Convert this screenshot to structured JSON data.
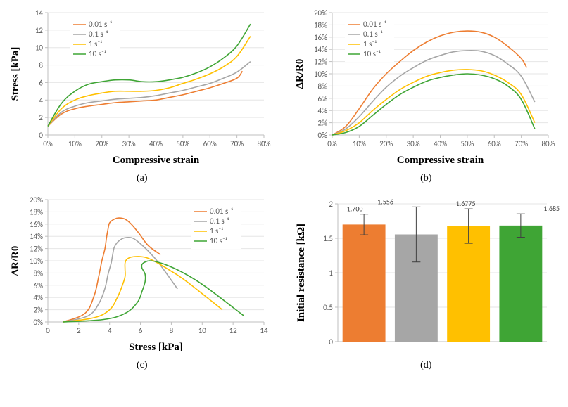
{
  "colors": {
    "s001": "#ed7d31",
    "s01": "#a6a6a6",
    "s1": "#ffc000",
    "s10": "#3fa535",
    "axis": "#bfbfbf",
    "grid": "#e6e6e6",
    "text": "#595959",
    "label": "#000000",
    "errbar": "#404040"
  },
  "legend_labels": [
    "0.01 s⁻¹",
    "0.1 s⁻¹",
    "1 s⁻¹",
    "10 s⁻¹"
  ],
  "panel_a": {
    "sublabel": "(a)",
    "xlabel": "Compressive strain",
    "ylabel": "Stress [kPa]",
    "xmin": 0,
    "xmax": 80,
    "xtick": 10,
    "xtick_suffix": "%",
    "ymin": 0,
    "ymax": 14,
    "ytick": 2,
    "series": {
      "s001": [
        [
          0,
          1.0
        ],
        [
          5,
          2.4
        ],
        [
          10,
          3.0
        ],
        [
          15,
          3.3
        ],
        [
          20,
          3.5
        ],
        [
          25,
          3.7
        ],
        [
          30,
          3.8
        ],
        [
          35,
          3.9
        ],
        [
          40,
          4.0
        ],
        [
          45,
          4.3
        ],
        [
          50,
          4.6
        ],
        [
          55,
          5.0
        ],
        [
          60,
          5.4
        ],
        [
          65,
          5.9
        ],
        [
          70,
          6.5
        ],
        [
          72,
          7.3
        ]
      ],
      "s01": [
        [
          0,
          1.0
        ],
        [
          5,
          2.6
        ],
        [
          10,
          3.3
        ],
        [
          15,
          3.7
        ],
        [
          20,
          3.9
        ],
        [
          25,
          4.1
        ],
        [
          30,
          4.2
        ],
        [
          35,
          4.3
        ],
        [
          40,
          4.5
        ],
        [
          45,
          4.8
        ],
        [
          50,
          5.1
        ],
        [
          55,
          5.5
        ],
        [
          60,
          5.9
        ],
        [
          65,
          6.5
        ],
        [
          70,
          7.2
        ],
        [
          75,
          8.4
        ]
      ],
      "s1": [
        [
          0,
          1.0
        ],
        [
          5,
          3.0
        ],
        [
          10,
          4.0
        ],
        [
          15,
          4.5
        ],
        [
          20,
          4.8
        ],
        [
          25,
          5.0
        ],
        [
          30,
          5.0
        ],
        [
          35,
          5.0
        ],
        [
          40,
          5.1
        ],
        [
          45,
          5.4
        ],
        [
          50,
          5.9
        ],
        [
          55,
          6.4
        ],
        [
          60,
          7.0
        ],
        [
          65,
          7.8
        ],
        [
          70,
          9.0
        ],
        [
          75,
          11.3
        ]
      ],
      "s10": [
        [
          0,
          1.0
        ],
        [
          5,
          3.6
        ],
        [
          10,
          5.0
        ],
        [
          15,
          5.8
        ],
        [
          20,
          6.1
        ],
        [
          25,
          6.3
        ],
        [
          30,
          6.3
        ],
        [
          35,
          6.1
        ],
        [
          40,
          6.1
        ],
        [
          45,
          6.3
        ],
        [
          50,
          6.6
        ],
        [
          55,
          7.1
        ],
        [
          60,
          7.8
        ],
        [
          65,
          8.8
        ],
        [
          70,
          10.2
        ],
        [
          75,
          12.7
        ]
      ]
    }
  },
  "panel_b": {
    "sublabel": "(b)",
    "xlabel": "Compressive strain",
    "ylabel": "ΔR/R0",
    "xmin": 0,
    "xmax": 80,
    "xtick": 10,
    "xtick_suffix": "%",
    "ymin": 0,
    "ymax": 20,
    "ytick": 2,
    "ytick_suffix": "%",
    "series": {
      "s001": [
        [
          0,
          0
        ],
        [
          5,
          1.4
        ],
        [
          10,
          4.3
        ],
        [
          15,
          7.5
        ],
        [
          20,
          10.0
        ],
        [
          25,
          12.0
        ],
        [
          30,
          13.8
        ],
        [
          35,
          15.2
        ],
        [
          40,
          16.2
        ],
        [
          45,
          16.8
        ],
        [
          50,
          17.0
        ],
        [
          55,
          16.8
        ],
        [
          60,
          16.0
        ],
        [
          65,
          14.5
        ],
        [
          70,
          12.5
        ],
        [
          72,
          11.0
        ]
      ],
      "s01": [
        [
          0,
          0
        ],
        [
          5,
          1.0
        ],
        [
          10,
          3.0
        ],
        [
          15,
          5.5
        ],
        [
          20,
          7.8
        ],
        [
          25,
          9.6
        ],
        [
          30,
          11.0
        ],
        [
          35,
          12.2
        ],
        [
          40,
          13.0
        ],
        [
          45,
          13.6
        ],
        [
          50,
          13.8
        ],
        [
          55,
          13.7
        ],
        [
          60,
          13.0
        ],
        [
          65,
          11.6
        ],
        [
          70,
          9.6
        ],
        [
          75,
          5.4
        ]
      ],
      "s1": [
        [
          0,
          0
        ],
        [
          5,
          0.7
        ],
        [
          10,
          2.0
        ],
        [
          15,
          4.0
        ],
        [
          20,
          5.8
        ],
        [
          25,
          7.4
        ],
        [
          30,
          8.6
        ],
        [
          35,
          9.6
        ],
        [
          40,
          10.2
        ],
        [
          45,
          10.6
        ],
        [
          50,
          10.7
        ],
        [
          55,
          10.5
        ],
        [
          60,
          9.8
        ],
        [
          65,
          8.6
        ],
        [
          70,
          6.6
        ],
        [
          75,
          2.0
        ]
      ],
      "s10": [
        [
          0,
          0
        ],
        [
          5,
          0.4
        ],
        [
          10,
          1.4
        ],
        [
          15,
          3.2
        ],
        [
          20,
          5.0
        ],
        [
          25,
          6.6
        ],
        [
          30,
          7.8
        ],
        [
          35,
          8.8
        ],
        [
          40,
          9.4
        ],
        [
          45,
          9.8
        ],
        [
          50,
          10.0
        ],
        [
          55,
          9.8
        ],
        [
          60,
          9.2
        ],
        [
          65,
          8.0
        ],
        [
          70,
          5.8
        ],
        [
          75,
          1.0
        ]
      ]
    }
  },
  "panel_c": {
    "sublabel": "(c)",
    "xlabel": "Stress [kPa]",
    "ylabel": "ΔR/R0",
    "xmin": 0,
    "xmax": 14,
    "xtick": 2,
    "ymin": 0,
    "ymax": 20,
    "ytick": 2,
    "ytick_suffix": "%",
    "series": {
      "s001": [
        [
          1.0,
          0
        ],
        [
          2.4,
          1.4
        ],
        [
          3.0,
          4.3
        ],
        [
          3.3,
          7.5
        ],
        [
          3.5,
          10.0
        ],
        [
          3.7,
          12.0
        ],
        [
          3.8,
          13.8
        ],
        [
          3.9,
          15.2
        ],
        [
          4.0,
          16.2
        ],
        [
          4.3,
          16.8
        ],
        [
          4.6,
          17.0
        ],
        [
          5.0,
          16.8
        ],
        [
          5.4,
          16.0
        ],
        [
          5.9,
          14.5
        ],
        [
          6.5,
          12.5
        ],
        [
          7.3,
          11.0
        ]
      ],
      "s01": [
        [
          1.0,
          0
        ],
        [
          2.6,
          1.0
        ],
        [
          3.3,
          3.0
        ],
        [
          3.7,
          5.5
        ],
        [
          3.9,
          7.8
        ],
        [
          4.1,
          9.6
        ],
        [
          4.2,
          11.0
        ],
        [
          4.3,
          12.2
        ],
        [
          4.5,
          13.0
        ],
        [
          4.8,
          13.6
        ],
        [
          5.1,
          13.8
        ],
        [
          5.5,
          13.7
        ],
        [
          5.9,
          13.0
        ],
        [
          6.5,
          11.6
        ],
        [
          7.2,
          9.6
        ],
        [
          8.4,
          5.4
        ]
      ],
      "s1": [
        [
          1.0,
          0
        ],
        [
          3.0,
          0.7
        ],
        [
          4.0,
          2.0
        ],
        [
          4.5,
          4.0
        ],
        [
          4.8,
          5.8
        ],
        [
          5.0,
          7.4
        ],
        [
          5.0,
          8.6
        ],
        [
          5.0,
          9.6
        ],
        [
          5.1,
          10.2
        ],
        [
          5.4,
          10.6
        ],
        [
          5.9,
          10.7
        ],
        [
          6.4,
          10.5
        ],
        [
          7.0,
          9.8
        ],
        [
          7.8,
          8.6
        ],
        [
          9.0,
          6.6
        ],
        [
          11.3,
          2.0
        ]
      ],
      "s10": [
        [
          1.0,
          0
        ],
        [
          3.6,
          0.4
        ],
        [
          5.0,
          1.4
        ],
        [
          5.8,
          3.2
        ],
        [
          6.1,
          5.0
        ],
        [
          6.3,
          6.6
        ],
        [
          6.3,
          7.8
        ],
        [
          6.1,
          8.8
        ],
        [
          6.1,
          9.4
        ],
        [
          6.3,
          9.8
        ],
        [
          6.6,
          10.0
        ],
        [
          7.1,
          9.8
        ],
        [
          7.8,
          9.2
        ],
        [
          8.8,
          8.0
        ],
        [
          10.2,
          5.8
        ],
        [
          12.7,
          1.0
        ]
      ]
    }
  },
  "panel_d": {
    "sublabel": "(d)",
    "ylabel": "Initial resistance [kΩ]",
    "ymin": 0,
    "ymax": 2,
    "ytick": 0.5,
    "bars": [
      {
        "value": 1.7,
        "err": 0.15,
        "color": "#ed7d31",
        "label": "1.700"
      },
      {
        "value": 1.556,
        "err": 0.4,
        "color": "#a6a6a6",
        "label": "1.556"
      },
      {
        "value": 1.6775,
        "err": 0.25,
        "color": "#ffc000",
        "label": "1.6775"
      },
      {
        "value": 1.685,
        "err": 0.17,
        "color": "#3fa535",
        "label": "1.685"
      }
    ]
  }
}
